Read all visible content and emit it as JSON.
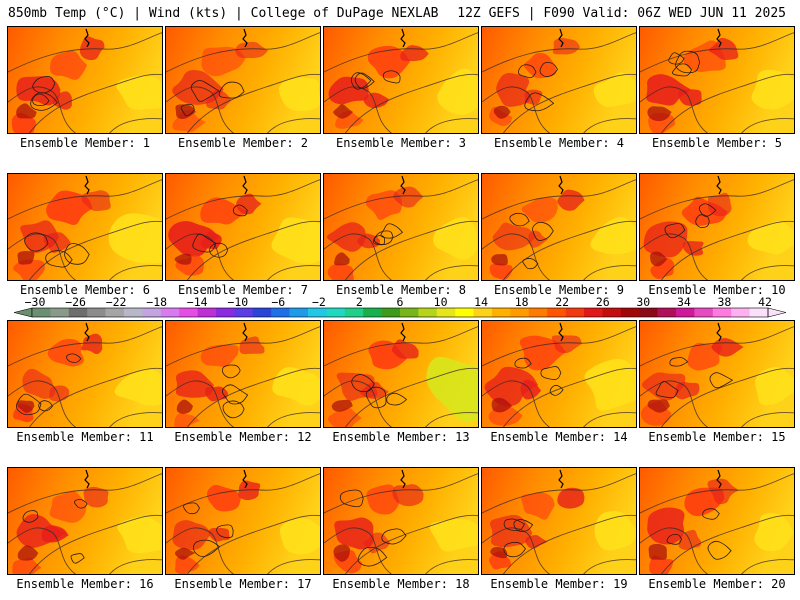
{
  "header": {
    "left_title": "850mb Temp (°C) | Wind (kts) | College of DuPage NEXLAB",
    "right_title": "12Z GEFS | F090 Valid: 06Z WED JUN 11 2025"
  },
  "members": [
    {
      "label": "Ensemble Member: 1",
      "heat": 0.8,
      "cool": 0.05
    },
    {
      "label": "Ensemble Member: 2",
      "heat": 0.85,
      "cool": 0.05
    },
    {
      "label": "Ensemble Member: 3",
      "heat": 0.75,
      "cool": 0.1
    },
    {
      "label": "Ensemble Member: 4",
      "heat": 0.7,
      "cool": 0.05
    },
    {
      "label": "Ensemble Member: 5",
      "heat": 0.85,
      "cool": 0.1
    },
    {
      "label": "Ensemble Member: 6",
      "heat": 0.85,
      "cool": 0.25
    },
    {
      "label": "Ensemble Member: 7",
      "heat": 0.8,
      "cool": 0.2
    },
    {
      "label": "Ensemble Member: 8",
      "heat": 0.75,
      "cool": 0.05
    },
    {
      "label": "Ensemble Member: 9",
      "heat": 0.7,
      "cool": 0.1
    },
    {
      "label": "Ensemble Member: 10",
      "heat": 0.8,
      "cool": 0.05
    },
    {
      "label": "Ensemble Member: 11",
      "heat": 0.7,
      "cool": 0.1
    },
    {
      "label": "Ensemble Member: 12",
      "heat": 0.7,
      "cool": 0.05
    },
    {
      "label": "Ensemble Member: 13",
      "heat": 0.8,
      "cool": 0.4
    },
    {
      "label": "Ensemble Member: 14",
      "heat": 0.85,
      "cool": 0.2
    },
    {
      "label": "Ensemble Member: 15",
      "heat": 0.8,
      "cool": 0.05
    },
    {
      "label": "Ensemble Member: 16",
      "heat": 0.8,
      "cool": 0.05
    },
    {
      "label": "Ensemble Member: 17",
      "heat": 0.7,
      "cool": 0.05
    },
    {
      "label": "Ensemble Member: 18",
      "heat": 0.85,
      "cool": 0.1
    },
    {
      "label": "Ensemble Member: 19",
      "heat": 0.75,
      "cool": 0.05
    },
    {
      "label": "Ensemble Member: 20",
      "heat": 0.85,
      "cool": 0.05
    }
  ],
  "colorbar": {
    "unit": "°C",
    "tick_labels": [
      "−30",
      "−26",
      "−22",
      "−18",
      "−14",
      "−10",
      "−6",
      "−2",
      "2",
      "6",
      "10",
      "14",
      "18",
      "22",
      "26",
      "30",
      "34",
      "38",
      "42"
    ],
    "colors": [
      "#6b8f71",
      "#8a9a8a",
      "#6e6e6e",
      "#8c8c8c",
      "#a5a5a5",
      "#b7b7c8",
      "#c3a3e0",
      "#d97bf0",
      "#e64de6",
      "#bf2fd6",
      "#8a2be2",
      "#5a3de6",
      "#2a46d8",
      "#1f6fe8",
      "#1e9ae8",
      "#22c6e6",
      "#20d8c0",
      "#1fcf8a",
      "#18b04a",
      "#3e9a1a",
      "#77b51a",
      "#b7d41c",
      "#e6e61a",
      "#ffff00",
      "#ffd21a",
      "#ffb000",
      "#ff9a00",
      "#ff7a00",
      "#ff5500",
      "#f23a10",
      "#e01818",
      "#c40e0e",
      "#a00808",
      "#8a0a1a",
      "#b0105a",
      "#d0189a",
      "#e64ac0",
      "#ff7ae0",
      "#ffb0f0",
      "#fbe0fa"
    ]
  }
}
